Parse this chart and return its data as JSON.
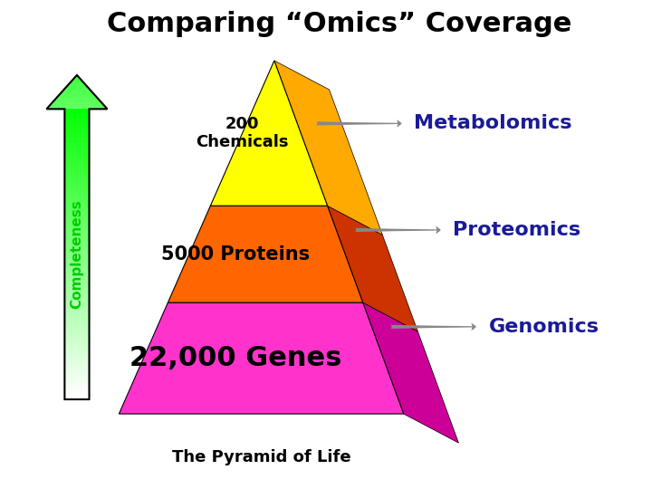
{
  "title": "Comparing “Omics” Coverage",
  "subtitle": "The Pyramid of Life",
  "background_color": "#ffffff",
  "title_fontsize": 22,
  "title_color": "#000000",
  "subtitle_fontsize": 13,
  "arrow_label": "Completeness",
  "layers": [
    {
      "label": "22,000 Genes",
      "label_fontsize": 22,
      "color_front": "#ff33cc",
      "color_side": "#cc0099",
      "omics": "Genomics",
      "omics_color": "#1a1a99"
    },
    {
      "label": "5000 Proteins",
      "label_fontsize": 15,
      "color_front": "#ff6600",
      "color_side": "#cc3300",
      "omics": "Proteomics",
      "omics_color": "#1a1a99"
    },
    {
      "label": "200\nChemicals",
      "label_fontsize": 13,
      "color_front": "#ffff00",
      "color_side": "#ffaa00",
      "omics": "Metabolomics",
      "omics_color": "#1a1a99"
    }
  ],
  "arrow_color": "#888888",
  "omics_fontsize": 16,
  "completeness_label_color": "#00cc00"
}
